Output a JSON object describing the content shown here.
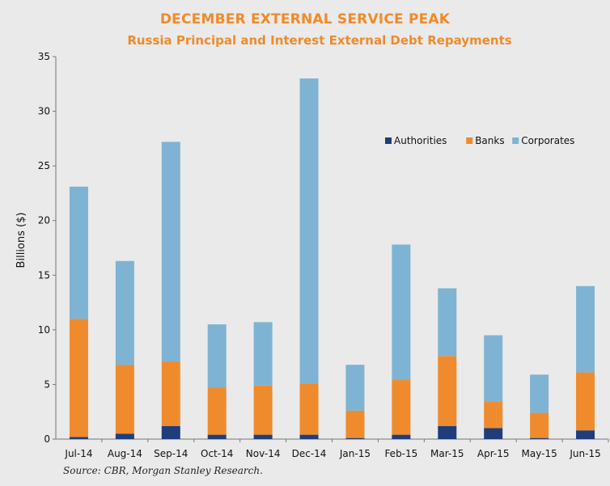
{
  "chart_data": {
    "type": "bar",
    "stacked": true,
    "title": "DECEMBER EXTERNAL SERVICE PEAK",
    "subtitle": "Russia Principal and Interest External Debt Repayments",
    "xlabel": "",
    "ylabel": "Billions ($)",
    "ylim": [
      0,
      35
    ],
    "yticks": [
      0,
      5,
      10,
      15,
      20,
      25,
      30,
      35
    ],
    "grid": false,
    "legend_position": "top-right",
    "categories": [
      "Jul-14",
      "Aug-14",
      "Sep-14",
      "Oct-14",
      "Nov-14",
      "Dec-14",
      "Jan-15",
      "Feb-15",
      "Mar-15",
      "Apr-15",
      "May-15",
      "Jun-15"
    ],
    "series": [
      {
        "name": "Authorities",
        "color": "#1f3d7a",
        "values": [
          0.2,
          0.5,
          1.2,
          0.4,
          0.4,
          0.4,
          0.1,
          0.4,
          1.2,
          1.0,
          0.1,
          0.8
        ]
      },
      {
        "name": "Banks",
        "color": "#ef8b2c",
        "values": [
          10.8,
          6.3,
          5.9,
          4.3,
          4.5,
          4.7,
          2.5,
          5.0,
          6.4,
          2.4,
          2.3,
          5.3
        ]
      },
      {
        "name": "Corporates",
        "color": "#7fb3d3",
        "values": [
          12.1,
          9.5,
          20.1,
          5.8,
          5.8,
          27.9,
          4.2,
          12.4,
          6.2,
          6.1,
          3.5,
          7.9
        ]
      }
    ],
    "source": "Source: CBR, Morgan Stanley Research."
  }
}
